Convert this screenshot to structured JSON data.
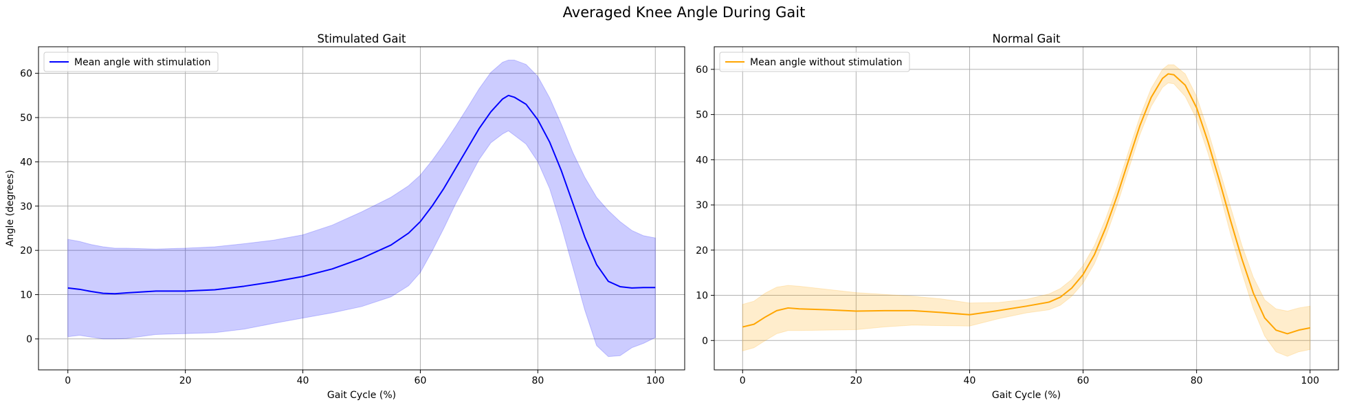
{
  "figure": {
    "title": "Averaged Knee Angle During Gait"
  },
  "chart_data": [
    {
      "type": "line",
      "title": "Stimulated Gait",
      "xlabel": "Gait Cycle (%)",
      "ylabel": "Angle (degrees)",
      "xlim": [
        -5,
        105
      ],
      "ylim": [
        -7,
        66
      ],
      "xticks": [
        0,
        20,
        40,
        60,
        80,
        100
      ],
      "yticks": [
        0,
        10,
        20,
        30,
        40,
        50,
        60
      ],
      "grid": true,
      "legend_position": "upper left",
      "series": [
        {
          "name": "Mean angle with stimulation",
          "color": "#0000ff",
          "band_color": "#0000ff",
          "x": [
            0,
            2,
            4,
            6,
            8,
            10,
            15,
            20,
            25,
            30,
            35,
            40,
            45,
            50,
            55,
            58,
            60,
            62,
            64,
            66,
            68,
            70,
            72,
            74,
            75,
            76,
            78,
            80,
            82,
            84,
            86,
            88,
            90,
            92,
            94,
            96,
            98,
            100
          ],
          "mean": [
            11.5,
            11.2,
            10.7,
            10.3,
            10.2,
            10.4,
            10.8,
            10.8,
            11.1,
            11.9,
            12.9,
            14.1,
            15.8,
            18.2,
            21.2,
            23.9,
            26.5,
            30.0,
            34.0,
            38.5,
            43.0,
            47.5,
            51.3,
            54.2,
            55.0,
            54.6,
            53.0,
            49.5,
            44.5,
            38.0,
            30.5,
            23.0,
            16.8,
            13.0,
            11.8,
            11.5,
            11.6,
            11.6
          ],
          "upper": [
            22.5,
            22.0,
            21.3,
            20.8,
            20.5,
            20.5,
            20.3,
            20.5,
            20.8,
            21.5,
            22.3,
            23.5,
            25.7,
            28.7,
            32.0,
            34.6,
            37.0,
            40.3,
            44.0,
            48.0,
            52.2,
            56.5,
            60.2,
            62.5,
            63.0,
            63.0,
            62.0,
            59.3,
            54.5,
            48.5,
            42.0,
            36.5,
            32.0,
            29.0,
            26.5,
            24.5,
            23.3,
            22.8
          ],
          "lower": [
            0.5,
            0.8,
            0.4,
            0.0,
            0.0,
            0.1,
            1.0,
            1.2,
            1.4,
            2.2,
            3.5,
            4.7,
            5.9,
            7.3,
            9.5,
            12.0,
            15.0,
            19.8,
            25.0,
            30.5,
            35.5,
            40.5,
            44.3,
            46.3,
            47.0,
            46.0,
            44.0,
            40.0,
            34.0,
            25.5,
            16.0,
            6.5,
            -1.5,
            -4.0,
            -3.8,
            -2.0,
            -1.0,
            0.3
          ]
        }
      ]
    },
    {
      "type": "line",
      "title": "Normal Gait",
      "xlabel": "Gait Cycle (%)",
      "ylabel": "",
      "xlim": [
        -5,
        105
      ],
      "ylim": [
        -6.5,
        65
      ],
      "xticks": [
        0,
        20,
        40,
        60,
        80,
        100
      ],
      "yticks": [
        0,
        10,
        20,
        30,
        40,
        50,
        60
      ],
      "grid": true,
      "legend_position": "upper left",
      "series": [
        {
          "name": "Mean angle without stimulation",
          "color": "#ffa500",
          "band_color": "#ffa500",
          "x": [
            0,
            2,
            4,
            6,
            8,
            10,
            15,
            20,
            25,
            30,
            35,
            40,
            45,
            50,
            54,
            56,
            58,
            60,
            62,
            64,
            66,
            68,
            70,
            72,
            74,
            75,
            76,
            78,
            80,
            82,
            84,
            86,
            88,
            90,
            92,
            94,
            96,
            98,
            100
          ],
          "mean": [
            3.0,
            3.6,
            5.2,
            6.6,
            7.2,
            7.0,
            6.8,
            6.5,
            6.6,
            6.6,
            6.2,
            5.7,
            6.6,
            7.6,
            8.5,
            9.6,
            11.6,
            14.6,
            19.0,
            25.0,
            32.0,
            39.8,
            47.5,
            53.8,
            58.0,
            59.0,
            58.8,
            56.5,
            51.5,
            44.0,
            35.5,
            26.5,
            18.0,
            10.5,
            5.0,
            2.3,
            1.5,
            2.3,
            2.8
          ],
          "upper": [
            8.0,
            8.7,
            10.5,
            11.8,
            12.2,
            12.0,
            11.3,
            10.6,
            10.2,
            9.8,
            9.2,
            8.3,
            8.4,
            9.1,
            10.3,
            11.5,
            13.5,
            16.6,
            21.0,
            27.0,
            34.0,
            41.8,
            49.5,
            55.8,
            60.0,
            61.0,
            61.0,
            59.0,
            54.0,
            46.5,
            38.0,
            29.5,
            21.0,
            14.0,
            9.0,
            7.0,
            6.5,
            7.2,
            7.6
          ],
          "lower": [
            -2.3,
            -1.6,
            0.0,
            1.5,
            2.2,
            2.2,
            2.3,
            2.4,
            3.0,
            3.4,
            3.3,
            3.2,
            4.8,
            6.1,
            6.8,
            7.8,
            9.8,
            12.7,
            17.0,
            23.0,
            30.0,
            37.8,
            45.5,
            51.8,
            56.0,
            57.0,
            56.8,
            54.0,
            49.0,
            41.5,
            33.0,
            23.5,
            15.0,
            7.0,
            1.0,
            -2.5,
            -3.5,
            -2.5,
            -2.0
          ]
        }
      ]
    }
  ]
}
